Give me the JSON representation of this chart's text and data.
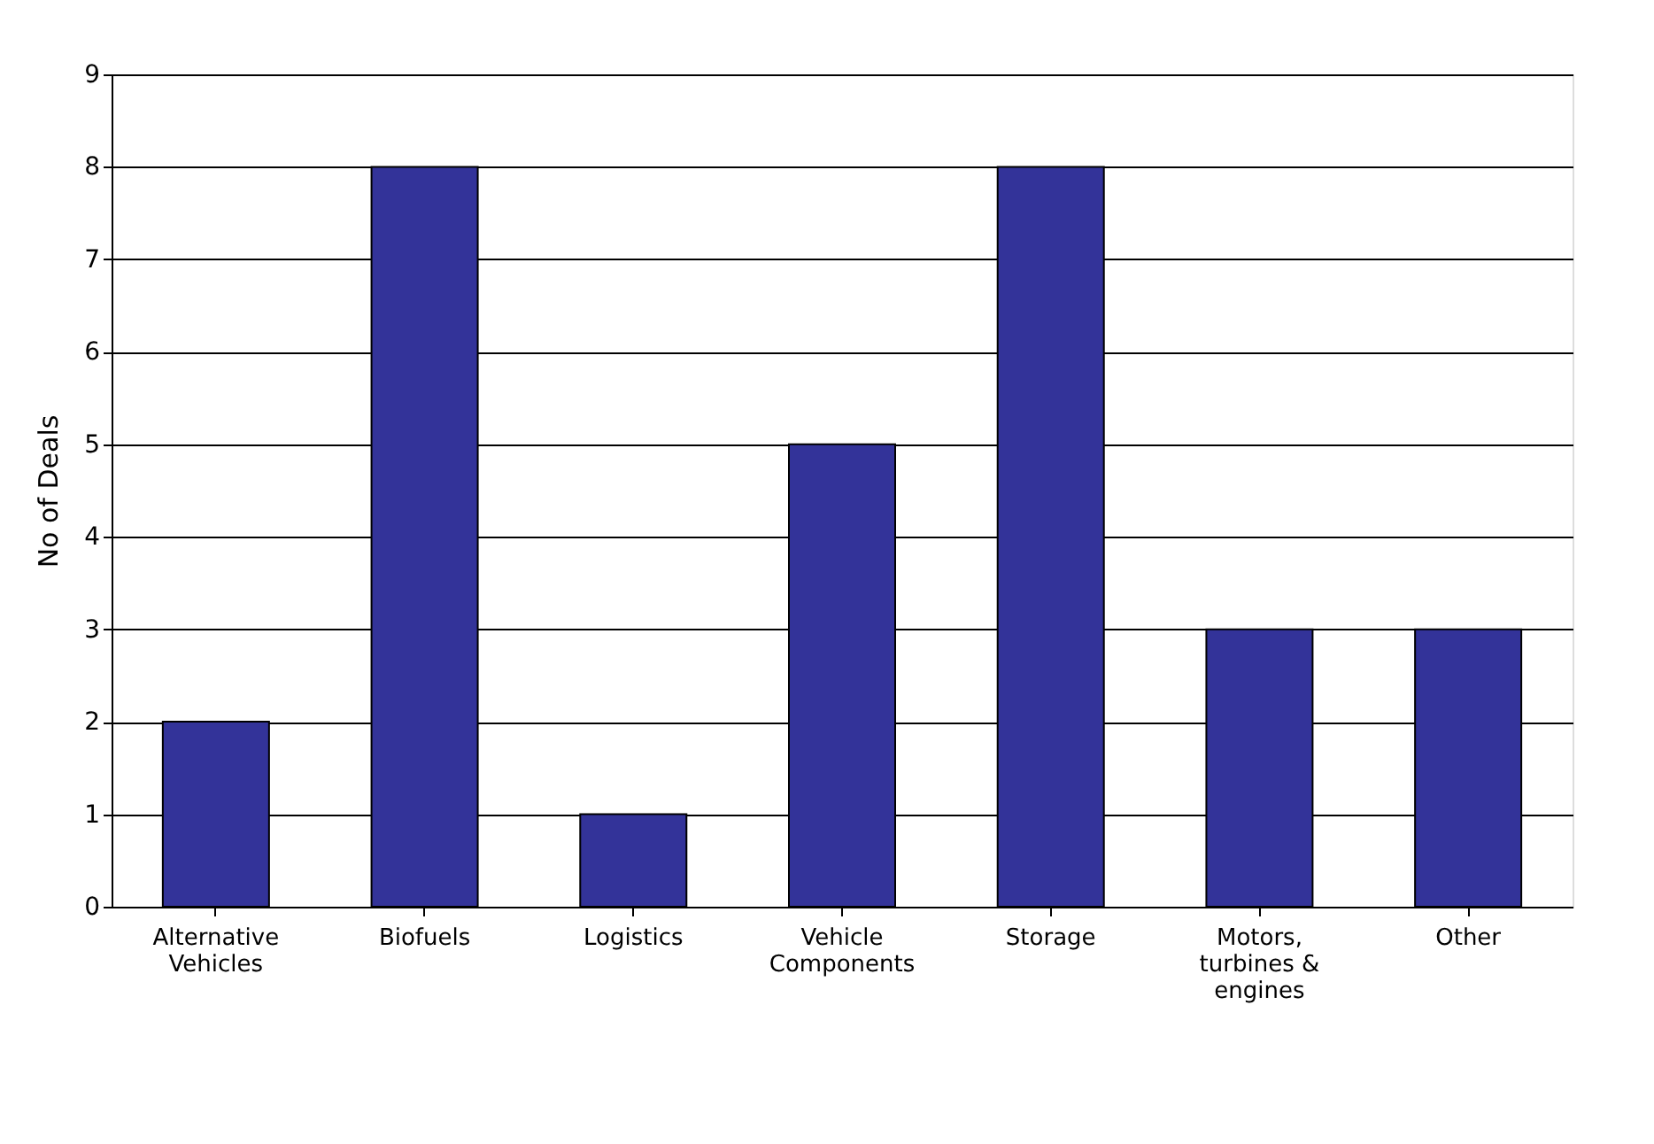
{
  "chart_data": {
    "type": "bar",
    "ylabel": "No of Deals",
    "categories": [
      "Alternative Vehicles",
      "Biofuels",
      "Logistics",
      "Vehicle Components",
      "Storage",
      "Motors, turbines & engines",
      "Other"
    ],
    "values": [
      2,
      8,
      1,
      5,
      8,
      3,
      3
    ],
    "color": "#333399",
    "ylim": [
      0,
      9
    ],
    "yticks": [
      0,
      1,
      2,
      3,
      4,
      5,
      6,
      7,
      8,
      9
    ],
    "grid": "y"
  }
}
